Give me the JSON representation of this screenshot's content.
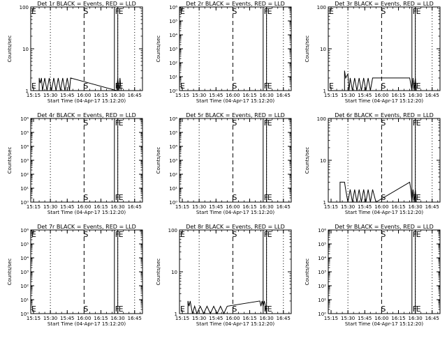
{
  "figure": {
    "x_axis_label": "Start Time (04-Apr-17 15:12:20)",
    "y_axis_label": "Counts/sec",
    "x_tick_labels": [
      "15:15",
      "15:30",
      "15:45",
      "16:00",
      "16:15",
      "16:30",
      "16:45"
    ],
    "colors": {
      "background": "#ffffff",
      "foreground": "#000000"
    }
  },
  "chart_data": [
    {
      "type": "line",
      "title": "Det 1r BLACK = Events, RED = LLD",
      "scale": "log",
      "yticks": [
        "1",
        "10",
        "100"
      ],
      "ylim": [
        1,
        100
      ],
      "markers": [
        {
          "label": "E",
          "at": "15:13"
        },
        {
          "label": "S",
          "at": "16:00"
        },
        {
          "label": "F",
          "at": "16:27"
        },
        {
          "label": "E",
          "at": "16:30"
        }
      ],
      "series": [
        {
          "name": "Events",
          "x": [
            "15:20",
            "15:21",
            "15:22",
            "15:23",
            "15:25",
            "15:27",
            "15:29",
            "15:31",
            "15:33",
            "15:35",
            "15:37",
            "15:39",
            "15:41",
            "15:43",
            "15:45",
            "15:47",
            "15:48",
            "16:29",
            "16:30",
            "16:31",
            "16:32",
            "16:33",
            "16:34"
          ],
          "values": [
            2,
            1.5,
            2,
            1,
            2,
            1,
            2,
            1,
            2,
            1,
            2,
            1,
            2,
            1,
            2,
            1,
            2,
            1,
            2,
            1,
            2,
            1,
            1
          ]
        }
      ]
    },
    {
      "type": "line",
      "title": "Det 2r BLACK = Events, RED = LLD",
      "scale": "log",
      "yticks": [
        "10⁰",
        "10¹",
        "10²",
        "10³",
        "10⁴",
        "10⁵",
        "10⁶"
      ],
      "ylim": [
        1,
        1000000
      ],
      "markers": [
        {
          "label": "E",
          "at": "15:13"
        },
        {
          "label": "S",
          "at": "16:00"
        },
        {
          "label": "F",
          "at": "16:27"
        },
        {
          "label": "E",
          "at": "16:30"
        }
      ],
      "series": []
    },
    {
      "type": "line",
      "title": "Det 3r BLACK = Events, RED = LLD",
      "scale": "log",
      "yticks": [
        "1",
        "10",
        "100"
      ],
      "ylim": [
        1,
        100
      ],
      "markers": [
        {
          "label": "E",
          "at": "15:13"
        },
        {
          "label": "S",
          "at": "16:00"
        },
        {
          "label": "F",
          "at": "16:27"
        },
        {
          "label": "E",
          "at": "16:30"
        }
      ],
      "series": [
        {
          "name": "Events",
          "x": [
            "15:27",
            "15:28",
            "15:30",
            "15:31",
            "15:32",
            "15:34",
            "15:36",
            "15:38",
            "15:40",
            "15:42",
            "15:44",
            "15:46",
            "15:48",
            "15:50",
            "15:52",
            "16:25",
            "16:27",
            "16:28",
            "16:29",
            "16:30",
            "16:31"
          ],
          "values": [
            3,
            2,
            2.5,
            1,
            2,
            1,
            2,
            1,
            2,
            1,
            2,
            1,
            2,
            1,
            2,
            2,
            1,
            2,
            1,
            2,
            1
          ]
        }
      ]
    },
    {
      "type": "line",
      "title": "Det 4r BLACK = Events, RED = LLD",
      "scale": "log",
      "yticks": [
        "10⁰",
        "10¹",
        "10²",
        "10³",
        "10⁴",
        "10⁵",
        "10⁶"
      ],
      "ylim": [
        1,
        1000000
      ],
      "markers": [
        {
          "label": "S",
          "at": "16:00"
        },
        {
          "label": "F",
          "at": "16:27"
        },
        {
          "label": "E",
          "at": "16:30"
        }
      ],
      "series": []
    },
    {
      "type": "line",
      "title": "Det 5r BLACK = Events, RED = LLD",
      "scale": "log",
      "yticks": [
        "10⁰",
        "10¹",
        "10²",
        "10³",
        "10⁴",
        "10⁵",
        "10⁶"
      ],
      "ylim": [
        1,
        1000000
      ],
      "markers": [
        {
          "label": "S",
          "at": "16:00"
        },
        {
          "label": "F",
          "at": "16:27"
        },
        {
          "label": "E",
          "at": "16:30"
        }
      ],
      "series": []
    },
    {
      "type": "line",
      "title": "Det 6r BLACK = Events, RED = LLD",
      "scale": "log",
      "yticks": [
        "1",
        "10",
        "100"
      ],
      "ylim": [
        1,
        100
      ],
      "markers": [
        {
          "label": "S",
          "at": "16:00"
        },
        {
          "label": "F",
          "at": "16:27"
        },
        {
          "label": "E",
          "at": "16:30"
        }
      ],
      "series": [
        {
          "name": "Events",
          "x": [
            "15:23",
            "15:27",
            "15:28",
            "15:30",
            "15:32",
            "15:34",
            "15:36",
            "15:38",
            "15:40",
            "15:42",
            "15:44",
            "15:46",
            "15:48",
            "15:50",
            "15:52",
            "15:55",
            "16:25",
            "16:26",
            "16:27",
            "16:28",
            "16:29",
            "16:30",
            "16:31"
          ],
          "values": [
            3,
            3,
            2,
            1,
            2,
            1,
            2,
            1,
            2,
            1,
            2,
            1,
            2,
            1,
            2,
            1,
            3,
            2,
            1,
            2,
            1,
            2,
            1
          ]
        }
      ]
    },
    {
      "type": "line",
      "title": "Det 7r BLACK = Events, RED = LLD",
      "scale": "log",
      "yticks": [
        "10⁰",
        "10¹",
        "10²",
        "10³",
        "10⁴",
        "10⁵",
        "10⁶"
      ],
      "ylim": [
        1,
        1000000
      ],
      "markers": [
        {
          "label": "E",
          "at": "15:13"
        },
        {
          "label": "S",
          "at": "16:00"
        },
        {
          "label": "F",
          "at": "16:27"
        },
        {
          "label": "E",
          "at": "16:30"
        }
      ],
      "series": []
    },
    {
      "type": "line",
      "title": "Det 8r BLACK = Events, RED = LLD",
      "scale": "log",
      "yticks": [
        "1",
        "10",
        "100"
      ],
      "ylim": [
        1,
        100
      ],
      "markers": [
        {
          "label": "E",
          "at": "15:13"
        },
        {
          "label": "S",
          "at": "16:00"
        },
        {
          "label": "F",
          "at": "16:27"
        },
        {
          "label": "E",
          "at": "16:30"
        }
      ],
      "series": [
        {
          "name": "Events",
          "x": [
            "15:20",
            "15:21",
            "15:22",
            "15:24",
            "15:26",
            "15:28",
            "15:31",
            "15:34",
            "15:37",
            "15:40",
            "15:43",
            "15:46",
            "15:49",
            "15:52",
            "15:55",
            "16:24",
            "16:25",
            "16:26",
            "16:27",
            "16:28",
            "16:29",
            "16:30"
          ],
          "values": [
            2,
            1.5,
            2,
            1,
            1.5,
            1,
            1.5,
            1,
            1.5,
            1,
            1.5,
            1,
            1.5,
            1,
            1.5,
            2,
            1.5,
            2,
            1.5,
            2,
            1.5,
            1
          ]
        }
      ]
    },
    {
      "type": "line",
      "title": "Det 9r BLACK = Events, RED = LLD",
      "scale": "log",
      "yticks": [
        "10⁰",
        "10¹",
        "10²",
        "10³",
        "10⁴",
        "10⁵",
        "10⁶"
      ],
      "ylim": [
        1,
        1000000
      ],
      "markers": [
        {
          "label": "S",
          "at": "16:00"
        },
        {
          "label": "F",
          "at": "16:27"
        },
        {
          "label": "E",
          "at": "16:30"
        }
      ],
      "series": []
    }
  ]
}
